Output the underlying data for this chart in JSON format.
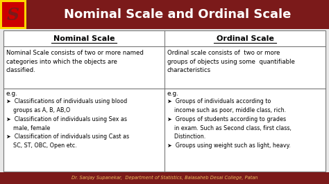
{
  "title": "Nominal Scale and Ordinal Scale",
  "title_bg": "#7B1A1A",
  "title_color": "#FFFFFF",
  "table_bg": "#E8E8E8",
  "header_col1": "Nominal Scale",
  "header_col2": "Ordinal Scale",
  "header_color": "#000000",
  "desc1": "Nominal Scale consists of two or more named\ncategories into which the objects are\nclassified.",
  "desc2": "Ordinal scale consists of  two or more\ngroups of objects using some  quantifiable\ncharacteristics",
  "eg_label": "e.g.",
  "nominal_eg": [
    "➤  Classifications of individuals using blood\n    groups as A, B, AB,O",
    "➤  Classification of individuals using Sex as\n    male, female",
    "➤  Classification of individuals using Cast as\n    SC, ST, OBC, Open etc."
  ],
  "ordinal_eg": [
    "➤  Groups of individuals according to\n    income such as poor, middle class, rich.",
    "➤  Groups of students according to grades\n    in exam. Such as Second class, first class,\n    Distinction.",
    "➤  Groups using weight such as light, heavy."
  ],
  "footer_text": "Dr. Sanjay Supanekar,  Department of Statistics, Balasaheb Desai College, Patan",
  "footer_bg": "#7B1A1A",
  "footer_color": "#F0C060",
  "logo_bg_outer": "#FFD700",
  "logo_bg_inner": "#CC0000",
  "logo_text": "S",
  "logo_text_color": "#7B1A1A",
  "fig_width": 4.74,
  "fig_height": 2.66,
  "dpi": 100
}
